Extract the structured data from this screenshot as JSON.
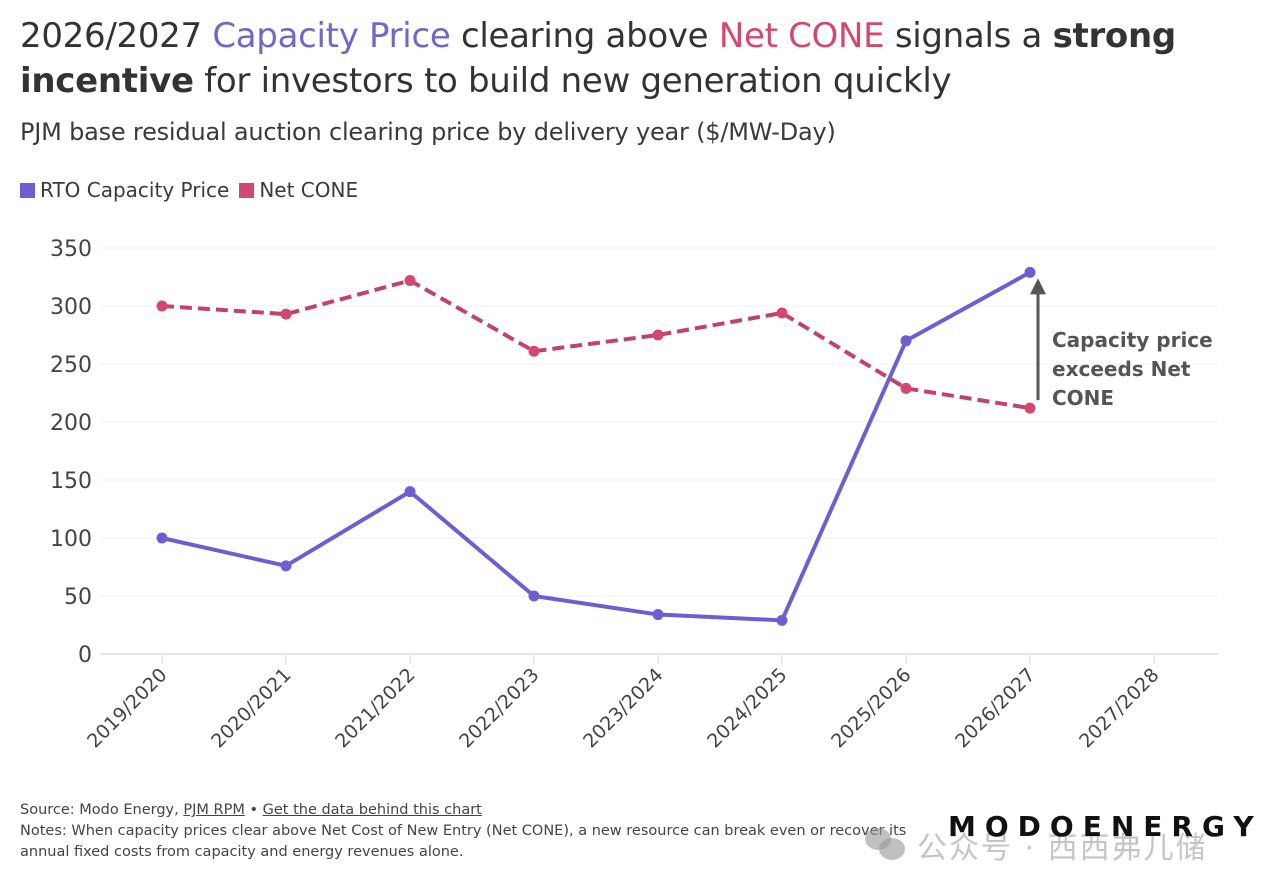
{
  "title": {
    "parts": [
      {
        "text": "2026/2027 ",
        "style": "normal"
      },
      {
        "text": "Capacity Price",
        "style": "purple"
      },
      {
        "text": " clearing above ",
        "style": "normal"
      },
      {
        "text": "Net CONE",
        "style": "red"
      },
      {
        "text": " signals a ",
        "style": "normal"
      },
      {
        "text": "strong incentive",
        "style": "bold"
      },
      {
        "text": " for investors to build new generation quickly",
        "style": "normal"
      }
    ]
  },
  "colors": {
    "rto": "#6c5fd3",
    "cone": "#d4476f",
    "cone_line": "#c0446a",
    "annotation": "#555555",
    "grid": "#f0f0f0",
    "axis": "#e6e6e6"
  },
  "chart_data": {
    "type": "line",
    "title": "2026/2027 Capacity Price clearing above Net CONE signals a strong incentive for investors to build new generation quickly",
    "subtitle": "PJM base residual auction clearing price by delivery year ($/MW-Day)",
    "xlabel": "",
    "ylabel": "$/MW-Day",
    "categories": [
      "2019/2020",
      "2020/2021",
      "2021/2022",
      "2022/2023",
      "2023/2024",
      "2024/2025",
      "2025/2026",
      "2026/2027",
      "2027/2028"
    ],
    "series": [
      {
        "name": "RTO Capacity Price",
        "style": "solid",
        "values": [
          100,
          76,
          140,
          50,
          34,
          29,
          270,
          329,
          null
        ]
      },
      {
        "name": "Net CONE",
        "style": "dashed",
        "values": [
          300,
          293,
          322,
          261,
          275,
          294,
          229,
          212,
          null
        ]
      }
    ],
    "ylim": [
      0,
      350
    ],
    "yticks": [
      0,
      50,
      100,
      150,
      200,
      250,
      300,
      350
    ],
    "grid": true,
    "legend": "top-left",
    "annotation": {
      "lines": [
        "Capacity price",
        "exceeds Net",
        "CONE"
      ],
      "category": "2026/2027",
      "arrow_from": 212,
      "arrow_to": 329
    }
  },
  "legend": [
    {
      "label": "RTO Capacity Price",
      "color": "#6c5fd3"
    },
    {
      "label": "Net CONE",
      "color": "#d4476f"
    }
  ],
  "footer": {
    "source_prefix": "Source: Modo Energy, ",
    "source_link": "PJM RPM",
    "separator": " • ",
    "data_link": "Get the data behind this chart",
    "notes": "Notes: When capacity prices clear above Net Cost of New Entry (Net CONE), a new resource can break even or recover its annual fixed costs from capacity and energy revenues alone."
  },
  "brand": "MODOENERGY",
  "watermark": "公众号 · 西西弗儿储"
}
